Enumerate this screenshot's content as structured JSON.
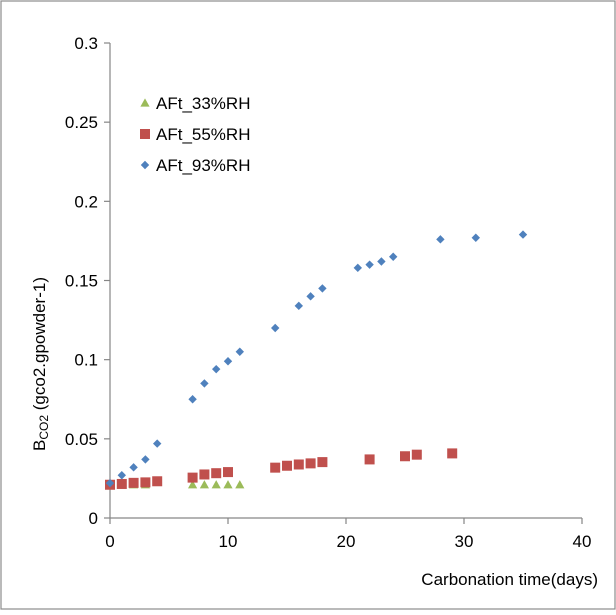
{
  "chart_data": {
    "type": "scatter",
    "title": "",
    "xlabel": "Carbonation time(days)",
    "ylabel_main": "B",
    "ylabel_sub": "CO2",
    "ylabel_rest": " (gco2.gpowder-1)",
    "xlim": [
      0,
      40
    ],
    "ylim": [
      0,
      0.3
    ],
    "x_ticks": [
      "0",
      "10",
      "20",
      "30",
      "40"
    ],
    "y_ticks": [
      "0",
      "0.05",
      "0.1",
      "0.15",
      "0.2",
      "0.25",
      "0.3"
    ],
    "grid": false,
    "legend_position": "top-left",
    "series": [
      {
        "name": "AFt_33%RH",
        "marker": "triangle",
        "color": "#9bbb59",
        "points": [
          [
            0,
            0.021
          ],
          [
            1,
            0.021
          ],
          [
            2,
            0.021
          ],
          [
            3,
            0.021
          ],
          [
            7,
            0.021
          ],
          [
            8,
            0.021
          ],
          [
            9,
            0.021
          ],
          [
            10,
            0.021
          ],
          [
            11,
            0.021
          ]
        ]
      },
      {
        "name": "AFt_55%RH",
        "marker": "square",
        "color": "#c0504d",
        "points": [
          [
            0,
            0.021
          ],
          [
            1,
            0.0215
          ],
          [
            2,
            0.0222
          ],
          [
            3,
            0.0225
          ],
          [
            4,
            0.0232
          ],
          [
            7,
            0.0255
          ],
          [
            8,
            0.0275
          ],
          [
            9,
            0.0283
          ],
          [
            10,
            0.029
          ],
          [
            14,
            0.0318
          ],
          [
            15,
            0.033
          ],
          [
            16,
            0.0338
          ],
          [
            17,
            0.0345
          ],
          [
            18,
            0.0353
          ],
          [
            22,
            0.037
          ],
          [
            25,
            0.039
          ],
          [
            26,
            0.04
          ],
          [
            29,
            0.0408
          ]
        ]
      },
      {
        "name": "AFt_93%RH",
        "marker": "diamond",
        "color": "#4f81bd",
        "points": [
          [
            0,
            0.022
          ],
          [
            1,
            0.027
          ],
          [
            2,
            0.032
          ],
          [
            3,
            0.037
          ],
          [
            4,
            0.047
          ],
          [
            7,
            0.075
          ],
          [
            8,
            0.085
          ],
          [
            9,
            0.094
          ],
          [
            10,
            0.099
          ],
          [
            11,
            0.105
          ],
          [
            14,
            0.12
          ],
          [
            16,
            0.134
          ],
          [
            17,
            0.14
          ],
          [
            18,
            0.145
          ],
          [
            21,
            0.158
          ],
          [
            22,
            0.16
          ],
          [
            23,
            0.162
          ],
          [
            24,
            0.165
          ],
          [
            28,
            0.176
          ],
          [
            31,
            0.177
          ],
          [
            35,
            0.179
          ]
        ]
      }
    ]
  }
}
